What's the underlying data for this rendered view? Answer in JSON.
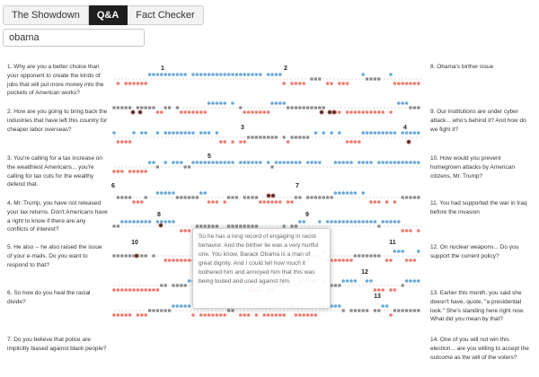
{
  "tabs": [
    {
      "label": "The Showdown",
      "active": false
    },
    {
      "label": "Q&A",
      "active": true
    },
    {
      "label": "Fact Checker",
      "active": false
    }
  ],
  "search": {
    "value": "obama",
    "placeholder": ""
  },
  "colors": {
    "candidate_a": "#6aa9d8",
    "candidate_b": "#f07a6e",
    "moderator": "#8a8a8a",
    "highlight": "#333333"
  },
  "questions_left": [
    "1. Why are you a better choice than your opponent to create the kinds of jobs that will put more money into the pockets of American works?",
    "2. How are you going to bring back the industries that have left this country for cheaper labor overseas?",
    "3. You're calling for a tax increase on the wealthiest Americans... you're calling for tax cuts for the wealthy defend that.",
    "4. Mr. Trump, you have not released your tax returns. Don't Americans have a right to know if there are any conflicts of interest?",
    "5. He also -- he also raised the issue of your e-mails. Do you want to respond to that?",
    "6. So how do you heal the racial divide?",
    "7. Do you believe that police are implicitly biased against black people?"
  ],
  "questions_right": [
    "8. Obama's birther issue",
    "9. Our institutions are under cyber attack... who's behind it? And how do we fight it?",
    "10. How would you prevent homegrown attacks by American citizens, Mr. Trump?",
    "11. You had supported the war in Iraq before the invasion",
    "12. On nuclear weapons... Do you support the current policy?",
    "13. Earlier this month, you said she doesn't have, quote, \"a presidential look.\" She's standing here right now. What did you mean by that?",
    "14. One of you will not win this election... are you willing to accept the outcome as the will of the voters?"
  ],
  "tooltip": {
    "text": "So he has a long record of engaging in racist behavior. And the birther lie was a very hurtful one. You know, Barack Obama is a man of great dignity. And I could tell how much it bothered him and annoyed him that this was being touted and used against him."
  },
  "timeline_labels": [
    "1",
    "2",
    "3",
    "4",
    "5",
    "6",
    "7",
    "8",
    "9",
    "10",
    "11",
    "12",
    "13"
  ]
}
